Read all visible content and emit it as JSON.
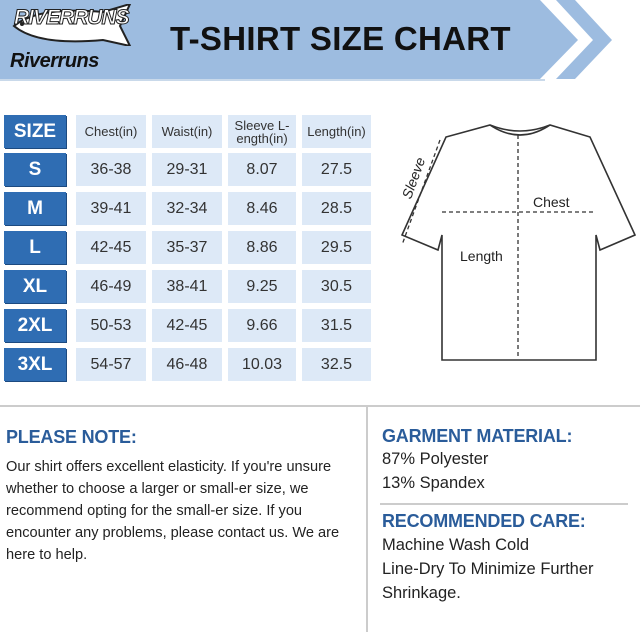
{
  "brand": {
    "logo_top": "RIVERRUNS",
    "logo_bottom": "Riverruns"
  },
  "title": "T-SHIRT SIZE CHART",
  "colors": {
    "banner": "#9dbce0",
    "size_cell": "#2f6db3",
    "data_cell": "#dde9f7",
    "heading": "#2a5c9a"
  },
  "table": {
    "headers": [
      "SIZE",
      "Chest(in)",
      "Waist(in)",
      "Sleeve L-ength(in)",
      "Length(in)"
    ],
    "rows": [
      [
        "S",
        "36-38",
        "29-31",
        "8.07",
        "27.5"
      ],
      [
        "M",
        "39-41",
        "32-34",
        "8.46",
        "28.5"
      ],
      [
        "L",
        "42-45",
        "35-37",
        "8.86",
        "29.5"
      ],
      [
        "XL",
        "46-49",
        "38-41",
        "9.25",
        "30.5"
      ],
      [
        "2XL",
        "50-53",
        "42-45",
        "9.66",
        "31.5"
      ],
      [
        "3XL",
        "54-57",
        "46-48",
        "10.03",
        "32.5"
      ]
    ]
  },
  "diagram": {
    "sleeve_label": "Sleeve",
    "chest_label": "Chest",
    "length_label": "Length"
  },
  "note": {
    "heading": "PLEASE NOTE:",
    "text": "Our shirt offers excellent elasticity. If you're unsure whether to choose a larger or small-er size, we recommend opting for the small-er size. If you encounter any problems, please contact us. We are here to help."
  },
  "material": {
    "heading": "GARMENT MATERIAL:",
    "items": [
      "87% Polyester",
      "13% Spandex"
    ]
  },
  "care": {
    "heading": "RECOMMENDED CARE:",
    "items": [
      "Machine Wash Cold",
      "Line-Dry To Minimize Further",
      "Shrinkage."
    ]
  }
}
